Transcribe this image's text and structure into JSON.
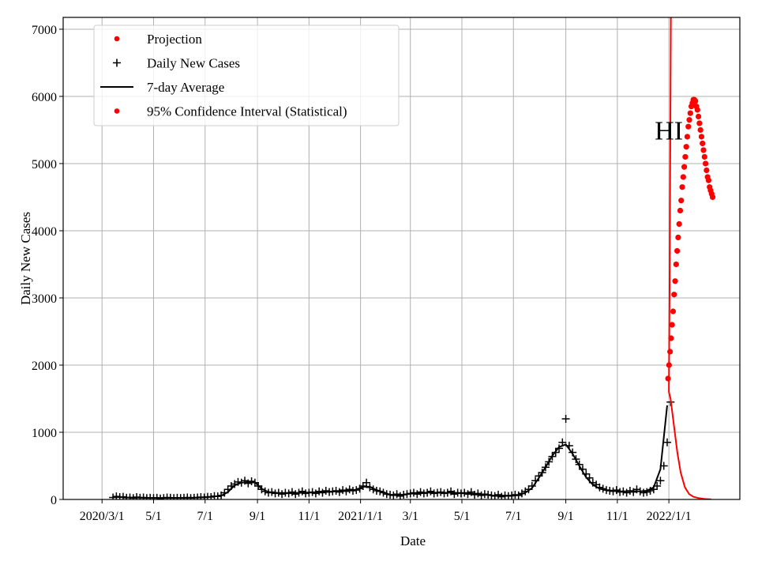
{
  "chart_data": {
    "type": "line",
    "xlabel": "Date",
    "ylabel": "Daily New Cases",
    "origin_date": "2020-03-01",
    "xlim": [
      "2020-01-15",
      "2022-03-26"
    ],
    "ylim": [
      0,
      7176
    ],
    "grid": true,
    "legend_position": "top-left",
    "x_ticks": [
      {
        "date": "2020-03-01",
        "label": "2020/3/1"
      },
      {
        "date": "2020-05-01",
        "label": "5/1"
      },
      {
        "date": "2020-07-01",
        "label": "7/1"
      },
      {
        "date": "2020-09-01",
        "label": "9/1"
      },
      {
        "date": "2020-11-01",
        "label": "11/1"
      },
      {
        "date": "2021-01-01",
        "label": "2021/1/1"
      },
      {
        "date": "2021-03-01",
        "label": "3/1"
      },
      {
        "date": "2021-05-01",
        "label": "5/1"
      },
      {
        "date": "2021-07-01",
        "label": "7/1"
      },
      {
        "date": "2021-09-01",
        "label": "9/1"
      },
      {
        "date": "2021-11-01",
        "label": "11/1"
      },
      {
        "date": "2022-01-01",
        "label": "2022/1/1"
      }
    ],
    "y_ticks": [
      {
        "value": 0,
        "label": "0"
      },
      {
        "value": 1000,
        "label": "1000"
      },
      {
        "value": 2000,
        "label": "2000"
      },
      {
        "value": 3000,
        "label": "3000"
      },
      {
        "value": 4000,
        "label": "4000"
      },
      {
        "value": 5000,
        "label": "5000"
      },
      {
        "value": 6000,
        "label": "6000"
      },
      {
        "value": 7000,
        "label": "7000"
      }
    ],
    "legend": [
      {
        "label": "Projection",
        "marker": "dot",
        "color": "#ff0000"
      },
      {
        "label": "Daily New Cases",
        "marker": "plus",
        "color": "#000000"
      },
      {
        "label": "7-day Average",
        "marker": "line",
        "color": "#000000"
      },
      {
        "label": "95% Confidence Interval (Statistical)",
        "marker": "dot",
        "color": "#ff0000"
      }
    ],
    "annotation": {
      "text": "HI",
      "date": "2022-01-01",
      "value": 5500
    },
    "series": {
      "daily_new_cases": {
        "name": "Daily New Cases",
        "color": "#000000",
        "start": "2020-03-14",
        "step_days": 4,
        "values": [
          30,
          45,
          35,
          40,
          25,
          30,
          20,
          35,
          25,
          30,
          20,
          25,
          20,
          25,
          15,
          20,
          30,
          25,
          20,
          25,
          20,
          25,
          30,
          20,
          25,
          30,
          35,
          30,
          40,
          35,
          50,
          45,
          60,
          100,
          150,
          200,
          230,
          260,
          250,
          280,
          240,
          270,
          250,
          200,
          150,
          120,
          100,
          110,
          90,
          100,
          80,
          100,
          90,
          110,
          80,
          100,
          120,
          90,
          100,
          110,
          90,
          120,
          100,
          130,
          110,
          120,
          130,
          110,
          140,
          120,
          150,
          130,
          140,
          160,
          200,
          250,
          180,
          150,
          130,
          120,
          100,
          80,
          70,
          60,
          80,
          50,
          70,
          80,
          90,
          100,
          80,
          110,
          90,
          100,
          120,
          90,
          100,
          110,
          90,
          100,
          120,
          80,
          100,
          90,
          100,
          80,
          110,
          70,
          90,
          60,
          80,
          70,
          60,
          50,
          70,
          40,
          60,
          50,
          60,
          70,
          60,
          90,
          120,
          150,
          200,
          280,
          350,
          400,
          480,
          560,
          640,
          700,
          760,
          850,
          1200,
          800,
          700,
          600,
          520,
          450,
          380,
          320,
          250,
          220,
          180,
          160,
          140,
          130,
          120,
          140,
          110,
          120,
          100,
          130,
          110,
          150,
          120,
          100,
          110,
          130,
          150,
          200,
          280,
          500,
          850,
          1450
        ]
      },
      "avg_7day": {
        "name": "7-day Average",
        "color": "#000000",
        "start": "2020-03-14",
        "step_days": 8,
        "values": [
          35,
          35,
          30,
          28,
          27,
          24,
          22,
          22,
          24,
          23,
          23,
          24,
          26,
          30,
          35,
          45,
          55,
          110,
          210,
          250,
          260,
          255,
          160,
          110,
          100,
          90,
          95,
          95,
          100,
          105,
          105,
          112,
          115,
          120,
          128,
          135,
          145,
          190,
          190,
          140,
          110,
          70,
          65,
          70,
          85,
          95,
          100,
          105,
          100,
          100,
          100,
          95,
          92,
          88,
          80,
          70,
          60,
          55,
          55,
          55,
          65,
          100,
          170,
          320,
          480,
          650,
          780,
          820,
          680,
          500,
          330,
          220,
          160,
          140,
          130,
          120,
          120,
          125,
          120,
          130,
          180,
          450,
          1400
        ]
      },
      "confidence_interval_dots": {
        "name": "95% Confidence Interval (Statistical)",
        "color": "#ff0000",
        "start": "2021-12-31",
        "step_days": 1.2,
        "values": [
          1800,
          2000,
          2200,
          2400,
          2600,
          2800,
          3050,
          3250,
          3500,
          3700,
          3900,
          4100,
          4300,
          4450,
          4650,
          4800,
          4950,
          5100,
          5250,
          5400,
          5550,
          5650,
          5750,
          5850,
          5900,
          5950,
          5950,
          5930,
          5850,
          5800,
          5700,
          5600,
          5500,
          5400,
          5300,
          5200,
          5100,
          5000,
          4900,
          4800,
          4750,
          4650,
          4600,
          4550,
          4500
        ]
      },
      "projection_upper": {
        "name": "Projection",
        "color": "#ff0000",
        "points": [
          [
            "2022-01-01",
            1600
          ],
          [
            "2022-01-02",
            3500
          ],
          [
            "2022-01-03",
            6200
          ],
          [
            "2022-01-04",
            9000
          ]
        ]
      },
      "projection_lower": {
        "name": "Projection",
        "color": "#ff0000",
        "points": [
          [
            "2022-01-01",
            1600
          ],
          [
            "2022-01-03",
            1500
          ],
          [
            "2022-01-05",
            1300
          ],
          [
            "2022-01-08",
            1000
          ],
          [
            "2022-01-11",
            700
          ],
          [
            "2022-01-15",
            400
          ],
          [
            "2022-01-20",
            180
          ],
          [
            "2022-01-25",
            80
          ],
          [
            "2022-01-30",
            40
          ],
          [
            "2022-02-05",
            20
          ],
          [
            "2022-02-12",
            8
          ],
          [
            "2022-02-20",
            2
          ]
        ]
      }
    }
  }
}
